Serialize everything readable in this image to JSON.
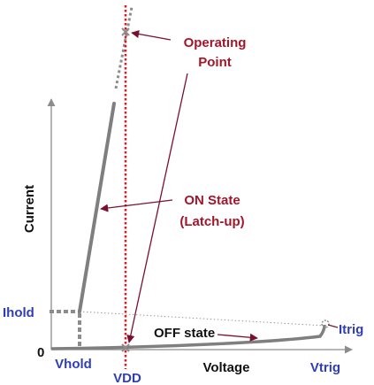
{
  "axes": {
    "x_label": "Voltage",
    "y_label": "Current",
    "origin_label": "0"
  },
  "markers": {
    "ihold": "Ihold",
    "vhold": "Vhold",
    "vdd": "VDD",
    "vtrig": "Vtrig",
    "itrig": "Itrig"
  },
  "callouts": {
    "operating_point_line1": "Operating",
    "operating_point_line2": "Point",
    "on_state_line1": "ON State",
    "on_state_line2": "(Latch-up)",
    "off_state": "OFF state"
  },
  "colors": {
    "axis": "#8c8c8c",
    "curve": "#7f7f7f",
    "vdd_line": "#e8141b",
    "callout_text": "#a3162a",
    "arrow": "#7a1030",
    "marker_text": "#2f3fb3"
  }
}
